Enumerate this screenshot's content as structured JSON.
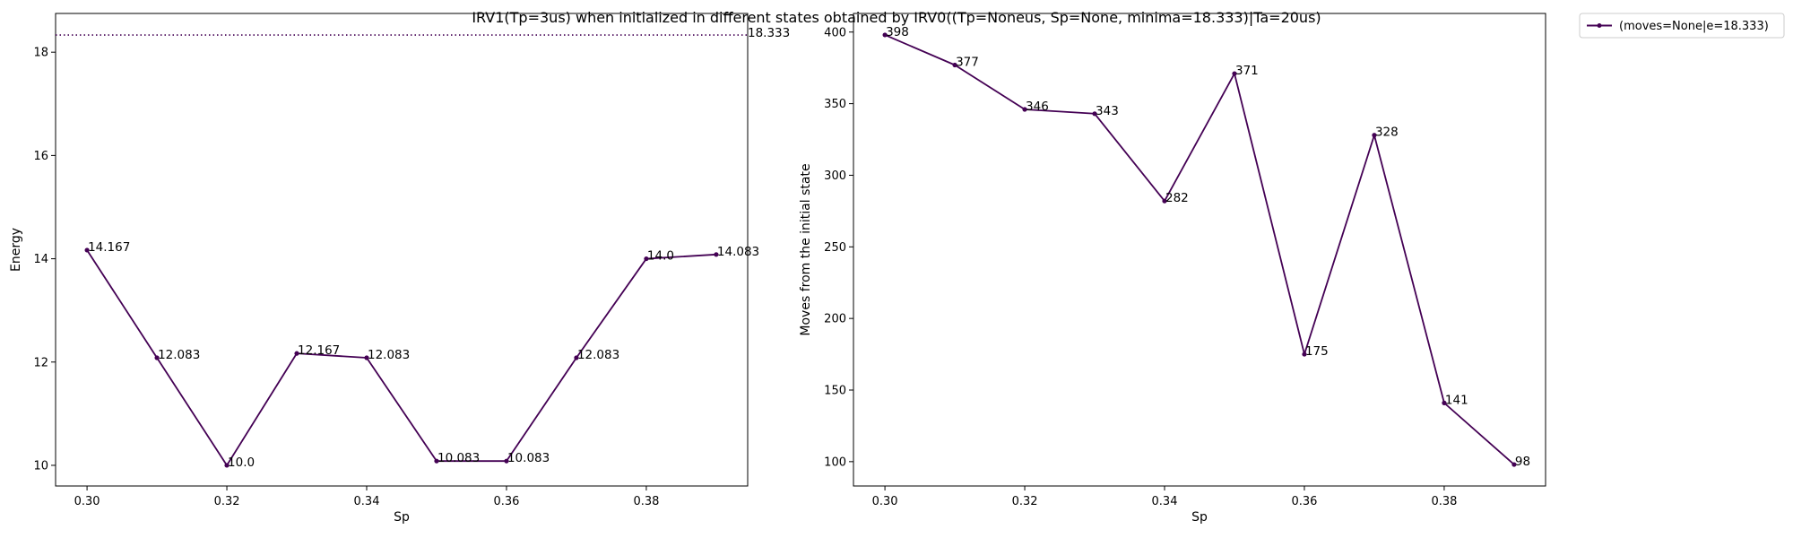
{
  "title": "IRV1(Tp=3us) when initialized in different states obtained by IRV0((Tp=Noneus, Sp=None, minima=18.333)|Ta=20us)",
  "legend": {
    "label": "(moves=None|e=18.333)",
    "placement": "outside-top-right"
  },
  "colors": {
    "line": "#440154",
    "axes": "#000000",
    "background": "#ffffff"
  },
  "chart_data": [
    {
      "type": "line",
      "name": "energy",
      "xlabel": "Sp",
      "ylabel": "Energy",
      "x": [
        0.3,
        0.31,
        0.32,
        0.33,
        0.34,
        0.35,
        0.36,
        0.37,
        0.38,
        0.39
      ],
      "values": [
        14.167,
        12.083,
        10.0,
        12.167,
        12.083,
        10.083,
        10.083,
        12.083,
        14.0,
        14.083
      ],
      "labels": [
        "14.167",
        "12.083",
        "10.0",
        "12.167",
        "12.083",
        "10.083",
        "10.083",
        "12.083",
        "14.0",
        "14.083"
      ],
      "xlim": [
        0.2955,
        0.3945
      ],
      "ylim": [
        9.6,
        18.75
      ],
      "xticks": [
        0.3,
        0.32,
        0.34,
        0.36,
        0.38
      ],
      "xtick_labels": [
        "0.30",
        "0.32",
        "0.34",
        "0.36",
        "0.38"
      ],
      "yticks": [
        10,
        12,
        14,
        16,
        18
      ],
      "ytick_labels": [
        "10",
        "12",
        "14",
        "16",
        "18"
      ],
      "reference_line": {
        "y": 18.333,
        "label": "18.333",
        "style": "dotted"
      },
      "grid": false
    },
    {
      "type": "line",
      "name": "moves",
      "xlabel": "Sp",
      "ylabel": "Moves from the initial state",
      "x": [
        0.3,
        0.31,
        0.32,
        0.33,
        0.34,
        0.35,
        0.36,
        0.37,
        0.38,
        0.39
      ],
      "values": [
        398,
        377,
        346,
        343,
        282,
        371,
        175,
        328,
        141,
        98
      ],
      "labels": [
        "398",
        "377",
        "346",
        "343",
        "282",
        "371",
        "175",
        "328",
        "141",
        "98"
      ],
      "xlim": [
        0.2955,
        0.3945
      ],
      "ylim": [
        83,
        413
      ],
      "xticks": [
        0.3,
        0.32,
        0.34,
        0.36,
        0.38
      ],
      "xtick_labels": [
        "0.30",
        "0.32",
        "0.34",
        "0.36",
        "0.38"
      ],
      "yticks": [
        100,
        150,
        200,
        250,
        300,
        350,
        400
      ],
      "ytick_labels": [
        "100",
        "150",
        "200",
        "250",
        "300",
        "350",
        "400"
      ],
      "grid": false
    }
  ]
}
